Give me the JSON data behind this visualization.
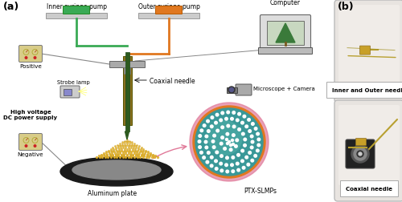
{
  "fig_width": 5.0,
  "fig_height": 2.53,
  "dpi": 100,
  "background_color": "#ffffff",
  "label_a": "(a)",
  "label_b": "(b)",
  "inner_syringe_label": "Inner syringe pump",
  "outer_syringe_label": "Outer syringe pump",
  "computer_label": "Computer",
  "coaxial_needle_label": "Coaxial needle",
  "strobe_lamp_label": "Strobe lamp",
  "microscope_label": "Microscope + Camera",
  "hv_label": "High voltage\nDC power supply",
  "positive_label": "Positive",
  "negative_label": "Negative",
  "aluminum_label": "Aluminum plate",
  "ptx_label": "PTX-SLMPs",
  "inner_needle_label": "Inner and Outer needle",
  "coaxial_photo_label": "Coaxial needle",
  "inner_color": "#3aaa55",
  "outer_color": "#e07820",
  "needle_dark": "#2d5a1e",
  "needle_mid": "#4a8a2a",
  "gold_color": "#e8b830",
  "teal_color": "#3a9898",
  "teal_inner": "#50b0a8",
  "orange_ring": "#e07820",
  "pink_color": "#e07898",
  "gauge_bg": "#d8cc88",
  "computer_screen_bg": "#c8d8c0",
  "wire_color": "#888888",
  "clamp_color": "#aaaaaa",
  "plate_dark": "#1a1a1a",
  "plate_mid": "#888888"
}
